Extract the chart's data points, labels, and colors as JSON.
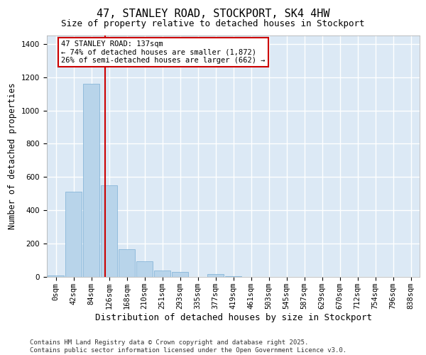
{
  "title1": "47, STANLEY ROAD, STOCKPORT, SK4 4HW",
  "title2": "Size of property relative to detached houses in Stockport",
  "xlabel": "Distribution of detached houses by size in Stockport",
  "ylabel": "Number of detached properties",
  "categories": [
    "0sqm",
    "42sqm",
    "84sqm",
    "126sqm",
    "168sqm",
    "210sqm",
    "251sqm",
    "293sqm",
    "335sqm",
    "377sqm",
    "419sqm",
    "461sqm",
    "503sqm",
    "545sqm",
    "587sqm",
    "629sqm",
    "670sqm",
    "712sqm",
    "754sqm",
    "796sqm",
    "838sqm"
  ],
  "values": [
    10,
    510,
    1160,
    550,
    165,
    95,
    38,
    30,
    0,
    15,
    5,
    0,
    0,
    0,
    0,
    0,
    0,
    0,
    0,
    0,
    0
  ],
  "bar_color": "#b8d4ea",
  "bar_edge_color": "#7aaed4",
  "vline_color": "#cc0000",
  "annotation_text": "47 STANLEY ROAD: 137sqm\n← 74% of detached houses are smaller (1,872)\n26% of semi-detached houses are larger (662) →",
  "annotation_box_color": "#ffffff",
  "annotation_box_edge": "#cc0000",
  "ylim": [
    0,
    1450
  ],
  "yticks": [
    0,
    200,
    400,
    600,
    800,
    1000,
    1200,
    1400
  ],
  "background_color": "#dce9f5",
  "grid_color": "#ffffff",
  "footer": "Contains HM Land Registry data © Crown copyright and database right 2025.\nContains public sector information licensed under the Open Government Licence v3.0.",
  "title_fontsize": 11,
  "subtitle_fontsize": 9,
  "axis_label_fontsize": 8.5,
  "tick_fontsize": 7.5,
  "annotation_fontsize": 7.5,
  "footer_fontsize": 6.5
}
